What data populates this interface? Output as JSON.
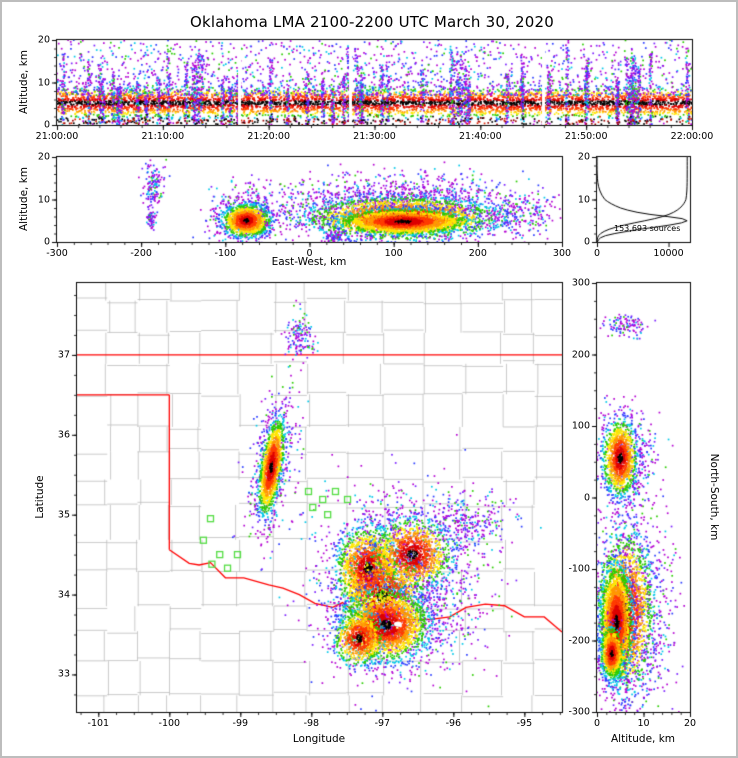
{
  "figure": {
    "title": "Oklahoma LMA 2100-2200 UTC March 30, 2020",
    "background": "#ffffff",
    "frame_color": "#bdbdbd"
  },
  "colors": {
    "axis": "#000000",
    "county_line": "#bdbdbd",
    "state_border": "#ff0000",
    "station_marker": "#55dd44",
    "curve": "#000000",
    "warm_scale": [
      [
        0.1,
        "#000000"
      ],
      [
        0.22,
        "#dd0000"
      ],
      [
        0.34,
        "#ff3c00"
      ],
      [
        0.46,
        "#ff9900"
      ],
      [
        0.58,
        "#ffe600"
      ],
      [
        0.7,
        "#2ccc00"
      ],
      [
        0.8,
        "#00c8e8"
      ],
      [
        0.9,
        "#2a3cff"
      ],
      [
        9,
        "#b400d2"
      ]
    ],
    "cool_scale": [
      [
        "#b400d2",
        0.38
      ],
      [
        "#7a1fff",
        0.58
      ],
      [
        "#2a3cff",
        0.76
      ],
      [
        "#00c8e8",
        0.9
      ],
      [
        "#2ccc00",
        1.0
      ]
    ],
    "dark_scale": [
      [
        "#000000",
        0.5
      ],
      [
        "#990000",
        0.8
      ],
      [
        "#dd2200",
        1.0
      ]
    ]
  },
  "chart_data": [
    {
      "id": "time_height",
      "type": "scatter",
      "description": "Lightning source altitude vs time",
      "ylabel": "Altitude, km",
      "xlim": [
        0,
        3600
      ],
      "ylim": [
        0,
        20
      ],
      "xticks": [
        0,
        600,
        1200,
        1800,
        2400,
        3000,
        3600
      ],
      "xtick_labels": [
        "21:00:00",
        "21:10:00",
        "21:20:00",
        "21:30:00",
        "21:40:00",
        "21:50:00",
        "22:00:00"
      ],
      "yticks": [
        0,
        10,
        20
      ],
      "gaps": [
        1035,
        1665,
        2760
      ],
      "clusters": [
        {
          "type": "uniform_band",
          "y_mean": 5.2,
          "y_sd": 1.7,
          "n": 5200,
          "kind": "warm"
        },
        {
          "type": "uniform_scatter",
          "ybounds": [
            7,
            20
          ],
          "ypow": 1.8,
          "n": 1700,
          "kind": "cool"
        },
        {
          "type": "streaks",
          "count": 55,
          "per": 48,
          "kind": "cool"
        },
        {
          "type": "uniform_band",
          "y_mean": 0.9,
          "y_sd": 0.55,
          "n": 420,
          "kind": "dark"
        }
      ]
    },
    {
      "id": "ew_height",
      "type": "scatter",
      "description": "Lightning source altitude vs east-west distance",
      "xlabel": "East-West, km",
      "ylabel": "Altitude, km",
      "xlim": [
        -300,
        300
      ],
      "ylim": [
        0,
        20
      ],
      "xticks": [
        -300,
        -200,
        -100,
        0,
        100,
        200,
        300
      ],
      "yticks": [
        0,
        10,
        20
      ],
      "clusters": [
        {
          "type": "gauss",
          "cx": -185,
          "cy": 13,
          "sx": 6,
          "sy": 2.6,
          "n": 140,
          "kind": "cool"
        },
        {
          "type": "gauss",
          "cx": -188,
          "cy": 5.5,
          "sx": 3,
          "sy": 1.4,
          "n": 60,
          "kind": "cool"
        },
        {
          "type": "gauss",
          "cx": -75,
          "cy": 6,
          "sx": 22,
          "sy": 3.4,
          "n": 420,
          "kind": "cool"
        },
        {
          "type": "gauss",
          "cx": 105,
          "cy": 8.5,
          "sx": 75,
          "sy": 3.4,
          "n": 1500,
          "kind": "cool"
        },
        {
          "type": "gauss",
          "cx": 250,
          "cy": 6,
          "sx": 26,
          "sy": 2.4,
          "n": 190,
          "kind": "cool"
        },
        {
          "type": "gauss",
          "cx": 30,
          "cy": 1.1,
          "sx": 7,
          "sy": 0.9,
          "n": 90,
          "kind": "cool"
        },
        {
          "type": "gauss",
          "cx": -75,
          "cy": 5,
          "sx": 14,
          "sy": 1.9,
          "n": 1100,
          "kind": "warm"
        },
        {
          "type": "gauss",
          "cx": 110,
          "cy": 5.6,
          "sx": 55,
          "sy": 2.5,
          "n": 2200,
          "kind": "warm"
        },
        {
          "type": "gauss",
          "cx": 112,
          "cy": 4.8,
          "sx": 38,
          "sy": 1.5,
          "n": 2000,
          "kind": "warm"
        }
      ]
    },
    {
      "id": "alt_histogram",
      "type": "line",
      "description": "Source count vs altitude with cumulative curve",
      "annotation": "153,693 sources",
      "xlim": [
        0,
        13000
      ],
      "ylim": [
        0,
        20
      ],
      "xticks": [
        0,
        10000
      ],
      "xtick_labels": [
        "0",
        "10000"
      ],
      "yticks": [
        0,
        10,
        20
      ],
      "profile": [
        [
          0,
          50
        ],
        [
          0.5,
          200
        ],
        [
          1,
          500
        ],
        [
          1.5,
          1200
        ],
        [
          2,
          2500
        ],
        [
          2.5,
          4200
        ],
        [
          3,
          6000
        ],
        [
          3.5,
          8200
        ],
        [
          4,
          10200
        ],
        [
          4.5,
          11800
        ],
        [
          5,
          12600
        ],
        [
          5.5,
          11900
        ],
        [
          6,
          9800
        ],
        [
          6.5,
          7400
        ],
        [
          7,
          5600
        ],
        [
          7.5,
          4300
        ],
        [
          8,
          3300
        ],
        [
          8.5,
          2600
        ],
        [
          9,
          2000
        ],
        [
          9.5,
          1500
        ],
        [
          10,
          1100
        ],
        [
          11,
          700
        ],
        [
          12,
          420
        ],
        [
          13,
          230
        ],
        [
          14,
          120
        ],
        [
          15,
          60
        ],
        [
          16,
          25
        ],
        [
          17,
          10
        ],
        [
          18,
          4
        ],
        [
          19,
          1
        ],
        [
          20,
          0
        ]
      ]
    },
    {
      "id": "plan_view",
      "type": "scatter-map",
      "description": "Lightning source plan view over Oklahoma with county and state borders",
      "xlabel": "Longitude",
      "ylabel": "Latitude",
      "xlim": [
        -101.3,
        -94.47
      ],
      "ylim": [
        32.53,
        37.9
      ],
      "xticks": [
        -101,
        -100,
        -99,
        -98,
        -97,
        -96,
        -95
      ],
      "yticks": [
        33,
        34,
        35,
        36,
        37
      ],
      "state_border_segments": [
        [
          [
            -101.3,
            37.0
          ],
          [
            -94.47,
            37.0
          ]
        ],
        [
          [
            -101.3,
            36.5
          ],
          [
            -100.0,
            36.5
          ]
        ],
        [
          [
            -100.0,
            36.5
          ],
          [
            -100.0,
            34.56
          ]
        ],
        [
          [
            -100.0,
            34.56
          ],
          [
            -99.72,
            34.39
          ],
          [
            -99.58,
            34.37
          ],
          [
            -99.42,
            34.4
          ],
          [
            -99.21,
            34.21
          ],
          [
            -98.95,
            34.21
          ],
          [
            -98.6,
            34.12
          ],
          [
            -98.4,
            34.08
          ],
          [
            -98.17,
            34.0
          ],
          [
            -97.95,
            33.89
          ],
          [
            -97.7,
            33.84
          ],
          [
            -97.56,
            33.9
          ],
          [
            -97.32,
            33.73
          ],
          [
            -97.12,
            33.72
          ],
          [
            -96.9,
            33.76
          ],
          [
            -96.62,
            33.69
          ],
          [
            -96.32,
            33.69
          ],
          [
            -96.05,
            33.72
          ],
          [
            -95.82,
            33.84
          ],
          [
            -95.55,
            33.88
          ],
          [
            -95.28,
            33.86
          ],
          [
            -95.0,
            33.72
          ],
          [
            -94.72,
            33.72
          ],
          [
            -94.47,
            33.53
          ]
        ]
      ],
      "stations": [
        [
          -99.42,
          34.95
        ],
        [
          -99.52,
          34.68
        ],
        [
          -99.29,
          34.5
        ],
        [
          -99.4,
          34.38
        ],
        [
          -99.18,
          34.33
        ],
        [
          -99.04,
          34.5
        ],
        [
          -98.04,
          35.29
        ],
        [
          -97.84,
          35.19
        ],
        [
          -97.66,
          35.29
        ],
        [
          -97.49,
          35.19
        ],
        [
          -97.98,
          35.09
        ],
        [
          -97.77,
          35.0
        ]
      ],
      "clusters": [
        {
          "type": "gauss",
          "cx": -96.7,
          "cy": 34.15,
          "sx": 0.55,
          "sy": 0.55,
          "n": 1800,
          "kind": "cool"
        },
        {
          "type": "gauss",
          "cx": -95.75,
          "cy": 34.92,
          "sx": 0.3,
          "sy": 0.17,
          "n": 240,
          "kind": "cool"
        },
        {
          "type": "gauss",
          "cx": -98.55,
          "cy": 35.6,
          "sx": 0.16,
          "sy": 0.45,
          "n": 380,
          "kind": "cool",
          "rot": 10
        },
        {
          "type": "gauss",
          "cx": -98.18,
          "cy": 37.2,
          "sx": 0.1,
          "sy": 0.16,
          "n": 140,
          "kind": "cool"
        },
        {
          "type": "gauss",
          "cx": -98.56,
          "cy": 35.6,
          "sx": 0.075,
          "sy": 0.3,
          "n": 1300,
          "kind": "warm",
          "rot": 10
        },
        {
          "type": "gauss",
          "cx": -97.2,
          "cy": 34.32,
          "sx": 0.22,
          "sy": 0.26,
          "n": 1500,
          "kind": "warm"
        },
        {
          "type": "gauss",
          "cx": -96.58,
          "cy": 34.5,
          "sx": 0.27,
          "sy": 0.22,
          "n": 1100,
          "kind": "warm"
        },
        {
          "type": "gauss",
          "cx": -97.0,
          "cy": 33.98,
          "sx": 0.3,
          "sy": 0.28,
          "n": 700,
          "kind": "warm"
        },
        {
          "type": "gauss",
          "cx": -96.95,
          "cy": 33.62,
          "sx": 0.3,
          "sy": 0.22,
          "n": 2000,
          "kind": "warm",
          "white_dot": [
            -96.78,
            33.63
          ]
        },
        {
          "type": "gauss",
          "cx": -97.33,
          "cy": 33.45,
          "sx": 0.17,
          "sy": 0.17,
          "n": 650,
          "kind": "warm"
        }
      ]
    },
    {
      "id": "ns_height",
      "type": "scatter",
      "description": "Lightning source altitude vs north-south distance",
      "xlabel": "Altitude, km",
      "ylabel_right": "North-South, km",
      "xlim": [
        0,
        20
      ],
      "ylim": [
        -300,
        300
      ],
      "xticks": [
        0,
        10,
        20
      ],
      "yticks": [
        -300,
        -200,
        -100,
        0,
        100,
        200,
        300
      ],
      "clusters": [
        {
          "type": "gauss",
          "cx": 8,
          "cy": -150,
          "sx": 4,
          "sy": 75,
          "n": 900,
          "kind": "cool"
        },
        {
          "type": "gauss",
          "cx": 6.5,
          "cy": 55,
          "sx": 3,
          "sy": 36,
          "n": 380,
          "kind": "cool"
        },
        {
          "type": "gauss",
          "cx": 6,
          "cy": 240,
          "sx": 2.4,
          "sy": 9,
          "n": 110,
          "kind": "cool"
        },
        {
          "type": "gauss",
          "cx": 6,
          "cy": -160,
          "sx": 3,
          "sy": 55,
          "n": 1600,
          "kind": "warm"
        },
        {
          "type": "gauss",
          "cx": 4.2,
          "cy": -175,
          "sx": 1.7,
          "sy": 40,
          "n": 2200,
          "kind": "warm"
        },
        {
          "type": "gauss",
          "cx": 3.2,
          "cy": -218,
          "sx": 1.2,
          "sy": 18,
          "n": 650,
          "kind": "warm"
        },
        {
          "type": "gauss",
          "cx": 5,
          "cy": 55,
          "sx": 1.8,
          "sy": 26,
          "n": 1100,
          "kind": "warm"
        }
      ]
    }
  ]
}
